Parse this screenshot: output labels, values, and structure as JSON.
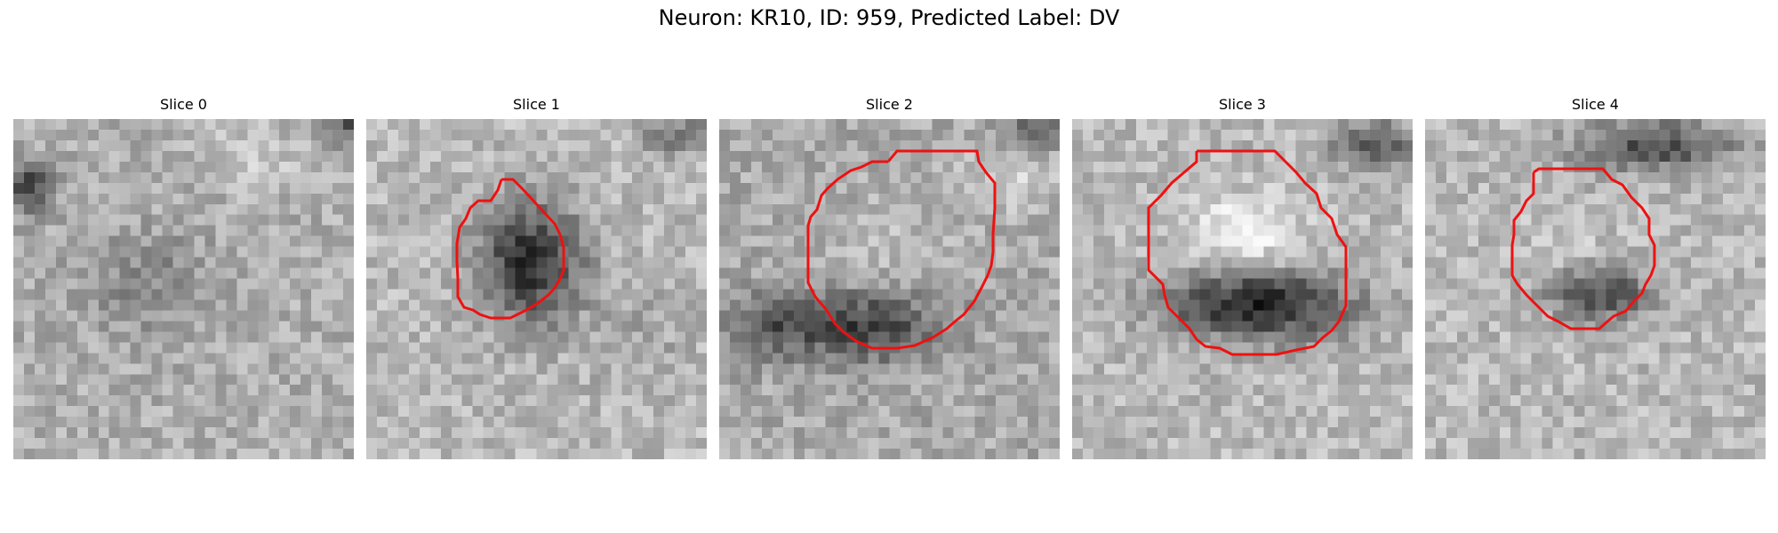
{
  "figure": {
    "title": "Neuron: KR10, ID: 959, Predicted Label: DV"
  },
  "outline_color": "#ee1111",
  "panels": [
    {
      "title": "Slice 0",
      "has_outline": false
    },
    {
      "title": "Slice 1",
      "has_outline": true
    },
    {
      "title": "Slice 2",
      "has_outline": true
    },
    {
      "title": "Slice 3",
      "has_outline": true
    },
    {
      "title": "Slice 4",
      "has_outline": true
    }
  ]
}
